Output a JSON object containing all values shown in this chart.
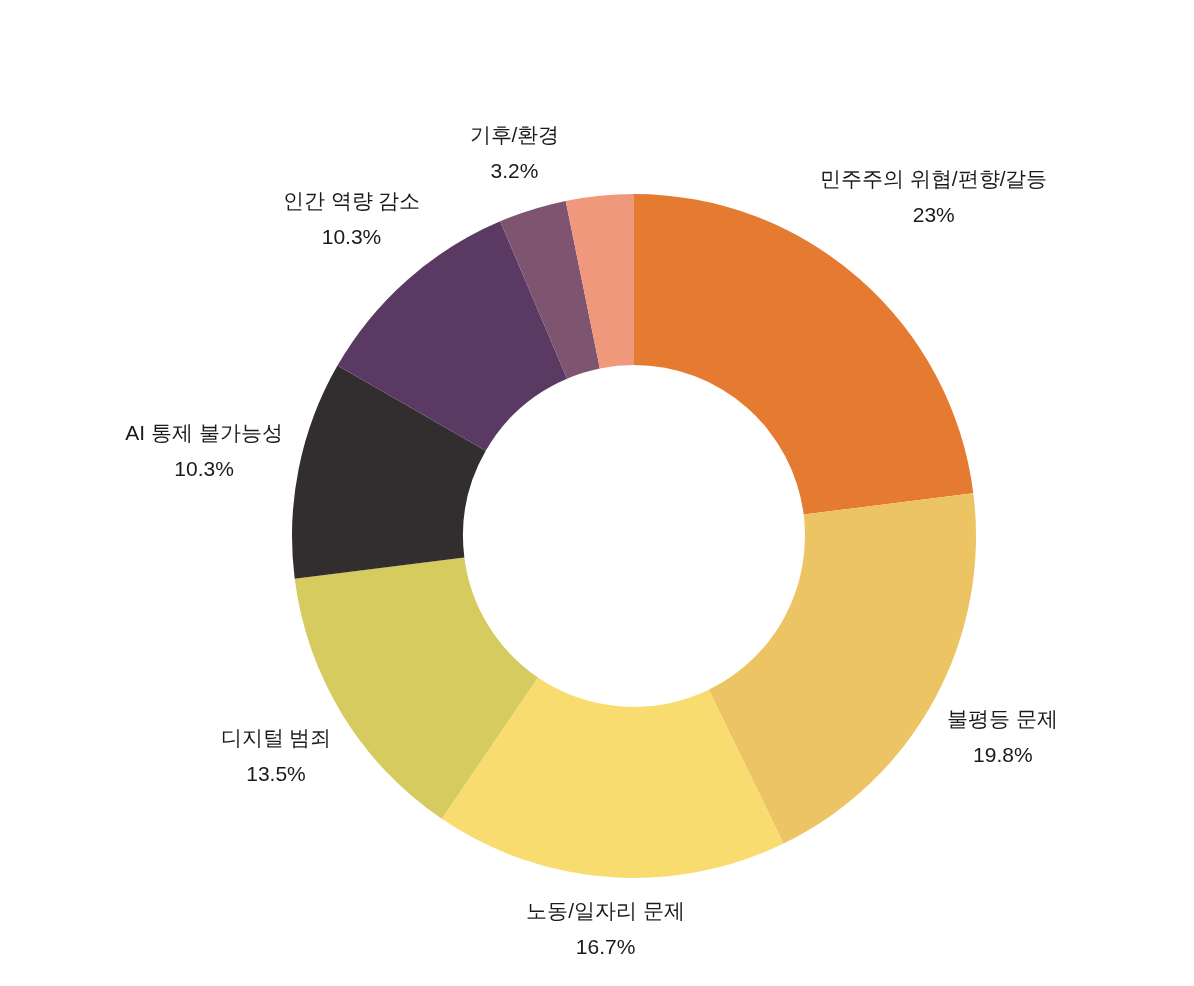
{
  "chart_data": {
    "type": "donut",
    "categories": [
      "민주주의 위협/편향/갈등",
      "불평등 문제",
      "노동/일자리 문제",
      "디지털 범죄",
      "AI 통제 불가능성",
      "인간 역량 감소",
      "기후/환경",
      null
    ],
    "values": [
      23,
      19.8,
      16.7,
      13.5,
      10.3,
      10.3,
      3.2,
      3.2
    ],
    "colors": [
      "#e47b30",
      "#edc463",
      "#f8dc70",
      "#d5cb5f",
      "#322e2f",
      "#5a3a62",
      "#7e5470",
      "#ef987c"
    ],
    "value_labels": [
      "23%",
      "19.8%",
      "16.7%",
      "13.5%",
      "10.3%",
      "10.3%",
      "3.2%",
      null
    ]
  }
}
